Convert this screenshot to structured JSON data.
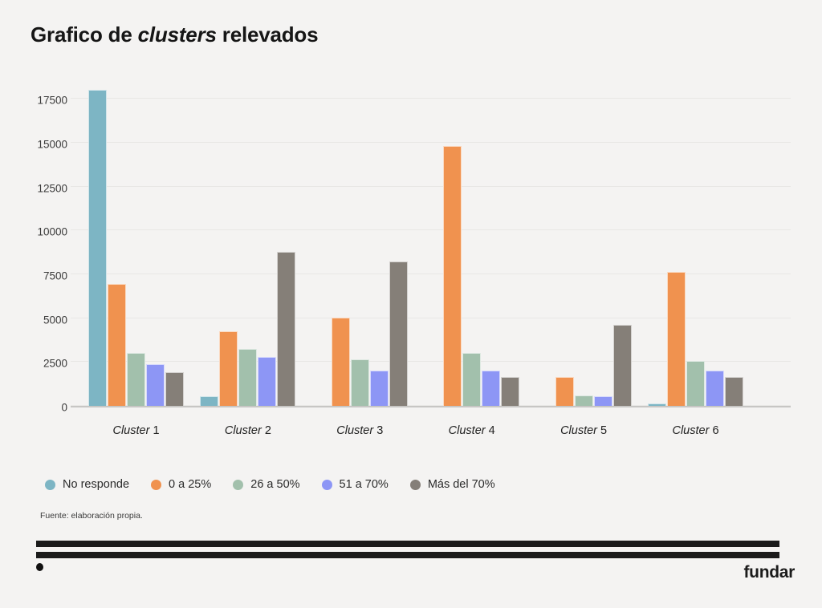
{
  "title": {
    "prefix": "Grafico de ",
    "italic": "clusters",
    "suffix": " relevados"
  },
  "chart_data": {
    "type": "bar",
    "title": "Grafico de clusters relevados",
    "categories": [
      "Cluster 1",
      "Cluster 2",
      "Cluster 3",
      "Cluster 4",
      "Cluster 5",
      "Cluster 6"
    ],
    "series": [
      {
        "name": "No responde",
        "color": "#7db5c4",
        "values": [
          18000,
          550,
          0,
          0,
          0,
          150
        ]
      },
      {
        "name": "0 a 25%",
        "color": "#f0924f",
        "values": [
          6950,
          4250,
          5050,
          14800,
          1650,
          7650
        ]
      },
      {
        "name": "26 a 50%",
        "color": "#a2c0ac",
        "values": [
          3000,
          3250,
          2650,
          3000,
          600,
          2550
        ]
      },
      {
        "name": "51 a 70%",
        "color": "#8d96f5",
        "values": [
          2400,
          2800,
          2000,
          2000,
          550,
          2000
        ]
      },
      {
        "name": "Más del 70%",
        "color": "#857f78",
        "values": [
          1900,
          8800,
          8250,
          1650,
          4600,
          1650
        ]
      }
    ],
    "xlabel": "",
    "ylabel": "",
    "yticks": [
      0,
      2500,
      5000,
      7500,
      10000,
      12500,
      15000,
      17500
    ],
    "ylim": [
      0,
      18650
    ],
    "grid": true,
    "legend_position": "bottom"
  },
  "footer": {
    "source": "Fuente: elaboración propia.",
    "logo": "fundar"
  }
}
